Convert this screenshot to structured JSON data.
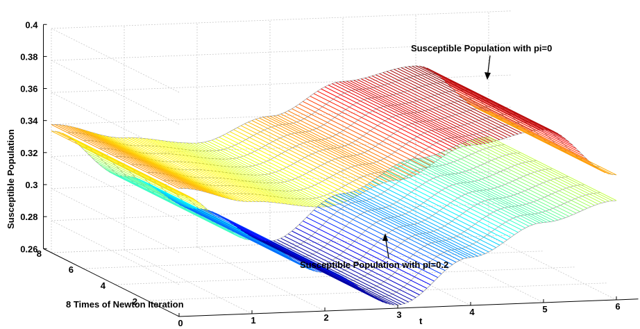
{
  "chart_data": {
    "type": "surface",
    "zlabel": "Susceptible Population",
    "xlabel": "t",
    "ylabel": "8 Times of Newton Iteration",
    "zlim": [
      0.26,
      0.4
    ],
    "z_ticks": [
      "0.26",
      "0.28",
      "0.3",
      "0.32",
      "0.34",
      "0.36",
      "0.38",
      "0.4"
    ],
    "x_ticks": [
      "0",
      "1",
      "2",
      "3",
      "4",
      "5",
      "6"
    ],
    "y_ticks": [
      "2",
      "4",
      "6",
      "8"
    ],
    "grid": true,
    "colormap": "jet",
    "surfaces": [
      {
        "name": "Susceptible Population with pi=0",
        "t": [
          0,
          1,
          2,
          3,
          4,
          5,
          6
        ],
        "S": [
          0.34,
          0.33,
          0.325,
          0.34,
          0.36,
          0.368,
          0.338
        ]
      },
      {
        "name": "Susceptible Population with pi=0.2",
        "t": [
          0,
          1,
          2,
          3,
          4,
          5,
          6
        ],
        "S": [
          0.336,
          0.306,
          0.284,
          0.262,
          0.29,
          0.31,
          0.322
        ]
      }
    ],
    "annotations": [
      {
        "text": "Susceptible Population with pi=0"
      },
      {
        "text": "Susceptible Population with pi=0.2"
      }
    ]
  }
}
